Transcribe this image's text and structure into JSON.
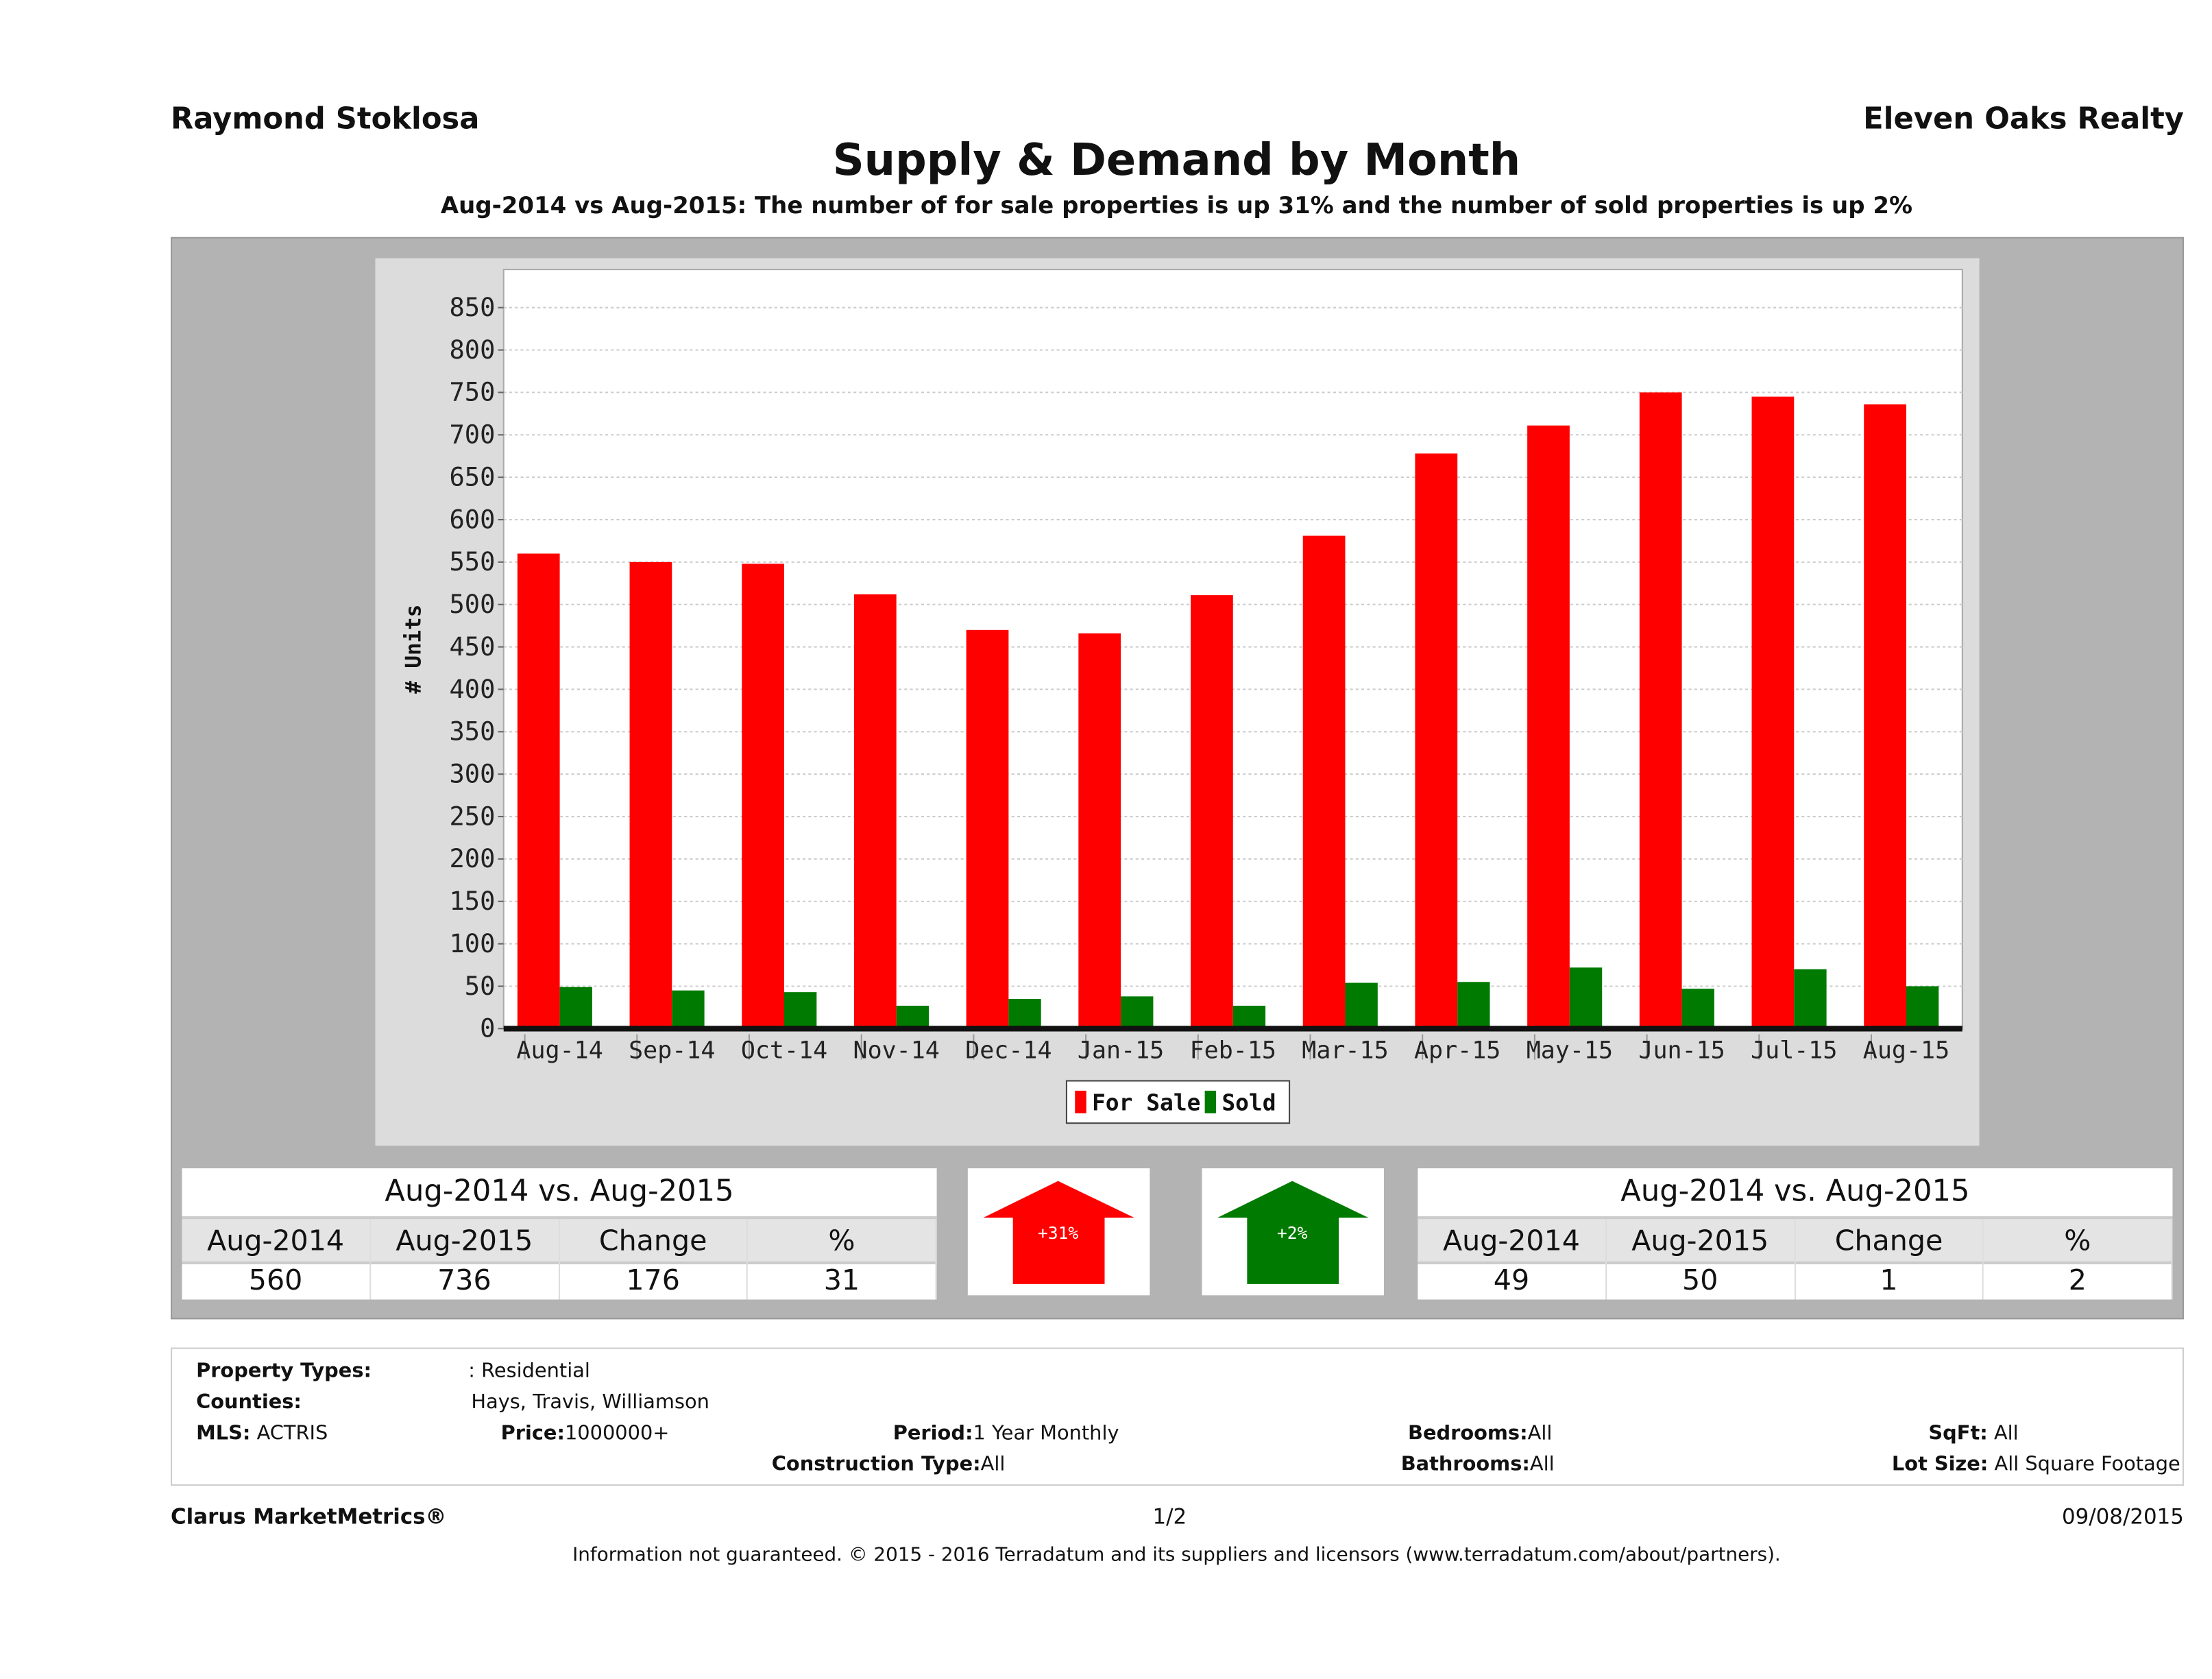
{
  "header": {
    "agent": "Raymond Stoklosa",
    "company": "Eleven Oaks Realty",
    "title": "Supply & Demand by Month",
    "subtitle": "Aug-2014 vs Aug-2015: The number of for sale properties is up 31% and the number of sold properties is up 2%"
  },
  "chart_data": {
    "type": "bar",
    "title": "Supply & Demand by Month",
    "xlabel": "",
    "ylabel": "# Units",
    "ylim": [
      0,
      850
    ],
    "yticks": [
      "0",
      "50",
      "100",
      "150",
      "200",
      "250",
      "300",
      "350",
      "400",
      "450",
      "500",
      "550",
      "600",
      "650",
      "700",
      "750",
      "800",
      "850"
    ],
    "grid": true,
    "legend": "bottom",
    "categories": [
      "Aug-14",
      "Sep-14",
      "Oct-14",
      "Nov-14",
      "Dec-14",
      "Jan-15",
      "Feb-15",
      "Mar-15",
      "Apr-15",
      "May-15",
      "Jun-15",
      "Jul-15",
      "Aug-15"
    ],
    "series": [
      {
        "name": "For Sale",
        "color": "#ff0000",
        "values": [
          560,
          550,
          548,
          512,
          470,
          466,
          511,
          581,
          678,
          711,
          750,
          745,
          736
        ]
      },
      {
        "name": "Sold",
        "color": "#007a00",
        "values": [
          49,
          45,
          43,
          27,
          35,
          38,
          27,
          54,
          55,
          72,
          47,
          70,
          50
        ]
      }
    ]
  },
  "for_sale_table": {
    "title": "Aug-2014 vs. Aug-2015",
    "headers": [
      "Aug-2014",
      "Aug-2015",
      "Change",
      "%"
    ],
    "values": [
      "560",
      "736",
      "176",
      "31"
    ]
  },
  "for_sale_arrow": {
    "label": "+31%",
    "color": "#ff0000",
    "direction": "up"
  },
  "sold_arrow": {
    "label": "+2%",
    "color": "#007a00",
    "direction": "up"
  },
  "sold_table": {
    "title": "Aug-2014 vs. Aug-2015",
    "headers": [
      "Aug-2014",
      "Aug-2015",
      "Change",
      "%"
    ],
    "values": [
      "49",
      "50",
      "1",
      "2"
    ]
  },
  "info": {
    "property_types_label": "Property Types:",
    "property_types": ": Residential",
    "counties_label": "Counties:",
    "counties": "Hays, Travis, Williamson",
    "mls_label": "MLS:",
    "mls": "ACTRIS",
    "price_label": "Price:",
    "price": "1000000+",
    "period_label": "Period:",
    "period": "1 Year Monthly",
    "construction_label": "Construction Type:",
    "construction": "All",
    "bedrooms_label": "Bedrooms:",
    "bedrooms": "All",
    "bathrooms_label": "Bathrooms:",
    "bathrooms": "All",
    "sqft_label": "SqFt:",
    "sqft": "All",
    "lot_label": "Lot Size:",
    "lot": "All Square Footage"
  },
  "footer": {
    "brand": "Clarus MarketMetrics®",
    "page": "1/2",
    "date": "09/08/2015",
    "disclaimer": "Information not guaranteed. © 2015 - 2016 Terradatum and its suppliers and licensors (www.terradatum.com/about/partners)."
  }
}
